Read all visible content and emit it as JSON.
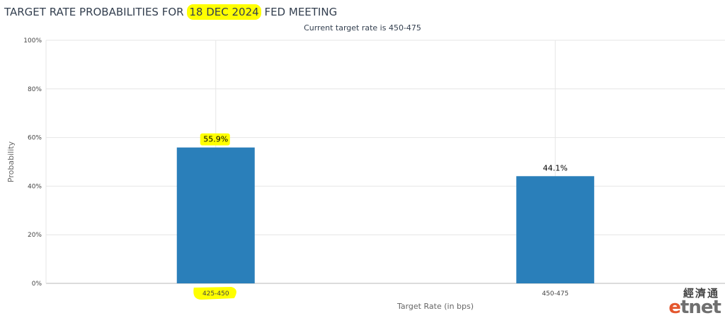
{
  "title": {
    "prefix": "TARGET RATE PROBABILITIES FOR",
    "date": "18 DEC 2024",
    "suffix": "FED MEETING"
  },
  "subtitle": "Current target rate is 450-475",
  "chart_data": {
    "type": "bar",
    "title": "TARGET RATE PROBABILITIES FOR 18 DEC 2024 FED MEETING",
    "subtitle": "Current target rate is 450-475",
    "categories": [
      "425-450",
      "450-475"
    ],
    "values": [
      55.9,
      44.1
    ],
    "data_labels": [
      "55.9%",
      "44.1%"
    ],
    "xlabel": "Target Rate (in bps)",
    "ylabel": "Probability",
    "ylim": [
      0,
      100
    ],
    "yticks": [
      "0%",
      "20%",
      "40%",
      "60%",
      "80%",
      "100%"
    ],
    "highlighted": [
      "55.9%",
      "425-450",
      "18 DEC 2024"
    ],
    "grid": true,
    "bar_color": "#2a7fba",
    "highlight_color": "#ffff00"
  },
  "watermark": {
    "chinese": "經濟通",
    "latin_e": "e",
    "latin_rest": "tnet"
  }
}
